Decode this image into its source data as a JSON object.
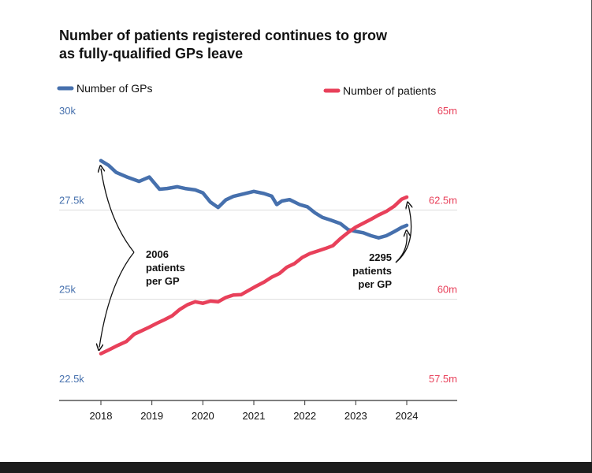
{
  "title": "Number of patients registered continues to grow as fully-qualified GPs leave",
  "colors": {
    "gps": "#4670ad",
    "patients": "#e8405a",
    "text": "#111111",
    "grid": "#dddddd"
  },
  "chart_data": {
    "type": "line",
    "title": "Number of patients registered continues to grow as fully-qualified GPs leave",
    "legend": {
      "gps": "Number of GPs",
      "patients": "Number of patients",
      "placement": "top"
    },
    "x_ticks": [
      "2018",
      "2019",
      "2020",
      "2021",
      "2022",
      "2023",
      "2024"
    ],
    "xlim": [
      2018,
      2024.4
    ],
    "left_axis": {
      "ticks": [
        "30k",
        "27.5k",
        "25k",
        "22.5k"
      ],
      "values": [
        30000,
        27500,
        25000,
        22500
      ],
      "ylim": [
        22500,
        30000
      ]
    },
    "right_axis": {
      "ticks": [
        "65m",
        "62.5m",
        "60m",
        "57.5m"
      ],
      "values": [
        65,
        62.5,
        60,
        57.5
      ],
      "ylim": [
        57.5,
        65
      ]
    },
    "grid": "horizontal",
    "series": [
      {
        "name": "Number of GPs",
        "axis": "left",
        "x": [
          2018.0,
          2018.15,
          2018.3,
          2018.5,
          2018.75,
          2018.95,
          2019.15,
          2019.3,
          2019.5,
          2019.65,
          2019.85,
          2020.0,
          2020.15,
          2020.3,
          2020.45,
          2020.6,
          2020.8,
          2021.0,
          2021.2,
          2021.35,
          2021.45,
          2021.55,
          2021.7,
          2021.9,
          2022.05,
          2022.2,
          2022.35,
          2022.5,
          2022.7,
          2022.85,
          2023.0,
          2023.15,
          2023.3,
          2023.45,
          2023.6,
          2023.75,
          2023.9,
          2024.0
        ],
        "values": [
          28880,
          28750,
          28550,
          28430,
          28300,
          28420,
          28080,
          28100,
          28150,
          28100,
          28060,
          27980,
          27720,
          27570,
          27780,
          27880,
          27950,
          28020,
          27960,
          27890,
          27650,
          27750,
          27790,
          27650,
          27590,
          27420,
          27290,
          27220,
          27120,
          26950,
          26900,
          26860,
          26780,
          26720,
          26780,
          26890,
          27010,
          27070
        ]
      },
      {
        "name": "Number of patients",
        "axis": "right",
        "x": [
          2018.0,
          2018.15,
          2018.3,
          2018.5,
          2018.65,
          2018.8,
          2018.95,
          2019.1,
          2019.25,
          2019.4,
          2019.55,
          2019.7,
          2019.85,
          2020.0,
          2020.15,
          2020.3,
          2020.45,
          2020.6,
          2020.75,
          2020.9,
          2021.05,
          2021.2,
          2021.35,
          2021.5,
          2021.65,
          2021.8,
          2021.95,
          2022.1,
          2022.25,
          2022.4,
          2022.55,
          2022.7,
          2022.85,
          2023.0,
          2023.15,
          2023.3,
          2023.45,
          2023.6,
          2023.75,
          2023.9,
          2024.0
        ],
        "values": [
          58.48,
          58.58,
          58.69,
          58.82,
          59.02,
          59.12,
          59.22,
          59.33,
          59.43,
          59.54,
          59.72,
          59.85,
          59.93,
          59.89,
          59.95,
          59.93,
          60.05,
          60.12,
          60.13,
          60.25,
          60.37,
          60.48,
          60.62,
          60.72,
          60.9,
          61.0,
          61.17,
          61.28,
          61.35,
          61.42,
          61.5,
          61.7,
          61.87,
          62.02,
          62.13,
          62.24,
          62.36,
          62.46,
          62.6,
          62.8,
          62.86
        ]
      }
    ],
    "annotations": [
      {
        "text": [
          "2006",
          "patients",
          "per GP"
        ],
        "year": 2018
      },
      {
        "text": [
          "2295",
          "patients",
          "per GP"
        ],
        "year": 2024
      }
    ]
  }
}
